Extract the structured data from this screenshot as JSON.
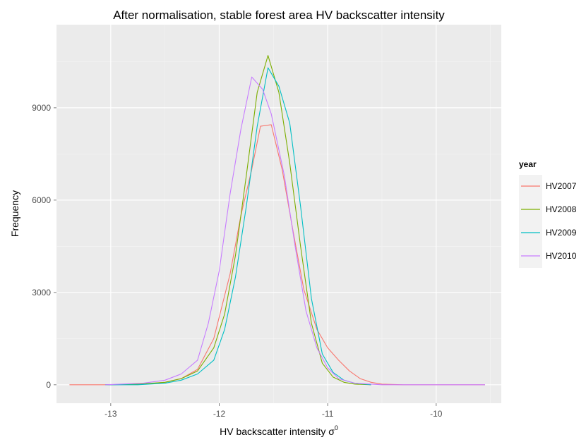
{
  "chart_data": {
    "type": "line",
    "title": "After normalisation, stable forest area HV backscatter intensity",
    "xlabel": "HV backscatter intensity σ",
    "xlabel_superscript": "0",
    "ylabel": "Frequency",
    "xlim": [
      -13.5,
      -9.4
    ],
    "ylim": [
      -600,
      11700
    ],
    "x_ticks": [
      -13,
      -12,
      -11,
      -10
    ],
    "y_ticks": [
      0,
      3000,
      6000,
      9000
    ],
    "grid": true,
    "legend": {
      "title": "year",
      "position": "right"
    },
    "series": [
      {
        "name": "HV2007",
        "color": "#F8766D",
        "points": [
          [
            -13.38,
            0
          ],
          [
            -13.0,
            0
          ],
          [
            -12.7,
            20
          ],
          [
            -12.5,
            80
          ],
          [
            -12.35,
            200
          ],
          [
            -12.2,
            500
          ],
          [
            -12.05,
            1500
          ],
          [
            -11.9,
            3600
          ],
          [
            -11.8,
            5500
          ],
          [
            -11.7,
            7000
          ],
          [
            -11.62,
            8400
          ],
          [
            -11.52,
            8450
          ],
          [
            -11.42,
            7000
          ],
          [
            -11.32,
            5000
          ],
          [
            -11.22,
            3100
          ],
          [
            -11.1,
            1800
          ],
          [
            -11.0,
            1200
          ],
          [
            -10.9,
            800
          ],
          [
            -10.8,
            450
          ],
          [
            -10.7,
            200
          ],
          [
            -10.6,
            80
          ],
          [
            -10.5,
            20
          ],
          [
            -10.3,
            0
          ],
          [
            -9.55,
            0
          ]
        ]
      },
      {
        "name": "HV2008",
        "color": "#7CAE00",
        "points": [
          [
            -13.05,
            0
          ],
          [
            -12.75,
            20
          ],
          [
            -12.5,
            80
          ],
          [
            -12.35,
            200
          ],
          [
            -12.2,
            450
          ],
          [
            -12.05,
            1200
          ],
          [
            -11.95,
            2300
          ],
          [
            -11.85,
            4200
          ],
          [
            -11.75,
            6800
          ],
          [
            -11.65,
            9500
          ],
          [
            -11.55,
            10700
          ],
          [
            -11.45,
            9500
          ],
          [
            -11.35,
            7200
          ],
          [
            -11.25,
            4500
          ],
          [
            -11.15,
            2000
          ],
          [
            -11.05,
            700
          ],
          [
            -10.95,
            250
          ],
          [
            -10.85,
            80
          ],
          [
            -10.75,
            20
          ],
          [
            -10.6,
            0
          ]
        ]
      },
      {
        "name": "HV2009",
        "color": "#00BFC4",
        "points": [
          [
            -13.05,
            0
          ],
          [
            -12.75,
            0
          ],
          [
            -12.5,
            50
          ],
          [
            -12.35,
            150
          ],
          [
            -12.2,
            350
          ],
          [
            -12.05,
            800
          ],
          [
            -11.95,
            1800
          ],
          [
            -11.85,
            3500
          ],
          [
            -11.75,
            5800
          ],
          [
            -11.65,
            8400
          ],
          [
            -11.55,
            10300
          ],
          [
            -11.45,
            9700
          ],
          [
            -11.35,
            8500
          ],
          [
            -11.25,
            5800
          ],
          [
            -11.15,
            2800
          ],
          [
            -11.05,
            1000
          ],
          [
            -10.95,
            400
          ],
          [
            -10.85,
            150
          ],
          [
            -10.75,
            50
          ],
          [
            -10.6,
            0
          ]
        ]
      },
      {
        "name": "HV2010",
        "color": "#C77CFF",
        "points": [
          [
            -13.05,
            0
          ],
          [
            -12.7,
            50
          ],
          [
            -12.5,
            150
          ],
          [
            -12.35,
            350
          ],
          [
            -12.2,
            800
          ],
          [
            -12.1,
            2000
          ],
          [
            -12.0,
            3700
          ],
          [
            -11.9,
            6200
          ],
          [
            -11.8,
            8300
          ],
          [
            -11.7,
            10000
          ],
          [
            -11.6,
            9600
          ],
          [
            -11.52,
            8800
          ],
          [
            -11.4,
            6800
          ],
          [
            -11.3,
            4500
          ],
          [
            -11.2,
            2400
          ],
          [
            -11.1,
            1200
          ],
          [
            -11.0,
            550
          ],
          [
            -10.9,
            200
          ],
          [
            -10.75,
            50
          ],
          [
            -10.5,
            0
          ],
          [
            -9.55,
            0
          ]
        ]
      }
    ]
  }
}
